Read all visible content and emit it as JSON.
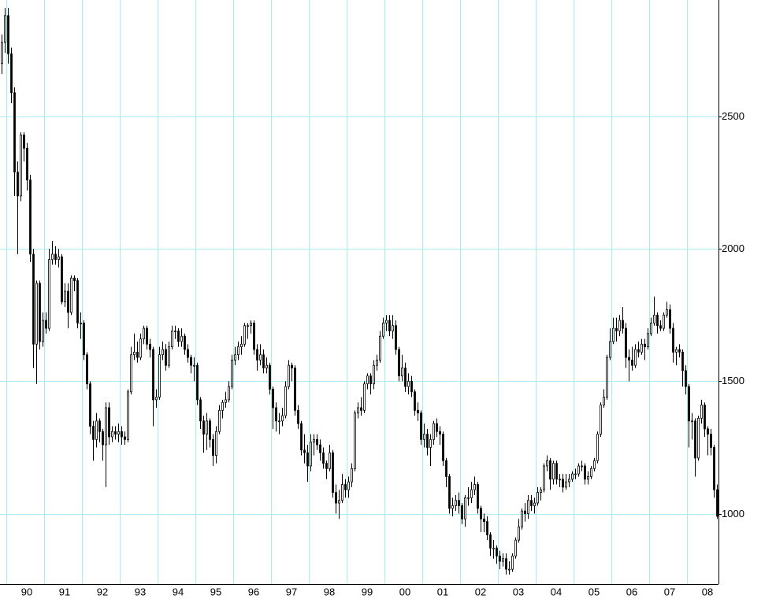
{
  "chart_data": {
    "type": "candlestick",
    "x_labels": [
      "90",
      "91",
      "92",
      "93",
      "94",
      "95",
      "96",
      "97",
      "98",
      "99",
      "00",
      "01",
      "02",
      "03",
      "04",
      "05",
      "06",
      "07",
      "08"
    ],
    "open": [
      2700,
      2780,
      2881,
      2737,
      2590,
      2290,
      2200,
      2430,
      2380,
      2260,
      1980,
      1640,
      1870,
      1650,
      1730,
      1700,
      1960,
      1980,
      1960,
      1970,
      1800,
      1840,
      1760,
      1890,
      1880,
      1720,
      1720,
      1600,
      1490,
      1330,
      1280,
      1350,
      1310,
      1260,
      1400,
      1290,
      1310,
      1300,
      1310,
      1290,
      1280,
      1460,
      1600,
      1610,
      1590,
      1660,
      1700,
      1640,
      1620,
      1430,
      1440,
      1600,
      1620,
      1560,
      1630,
      1690,
      1690,
      1650,
      1670,
      1620,
      1590,
      1560,
      1560,
      1430,
      1350,
      1300,
      1350,
      1280,
      1220,
      1310,
      1390,
      1420,
      1430,
      1480,
      1580,
      1600,
      1630,
      1640,
      1710,
      1710,
      1720,
      1620,
      1580,
      1600,
      1550,
      1560,
      1470,
      1400,
      1350,
      1350,
      1370,
      1480,
      1560,
      1550,
      1390,
      1340,
      1240,
      1230,
      1180,
      1270,
      1280,
      1260,
      1230,
      1190,
      1170,
      1230,
      1080,
      1040,
      1050,
      1110,
      1090,
      1120,
      1170,
      1380,
      1400,
      1390,
      1490,
      1520,
      1490,
      1560,
      1580,
      1670,
      1720,
      1730,
      1690,
      1710,
      1620,
      1520,
      1550,
      1480,
      1500,
      1460,
      1390,
      1380,
      1280,
      1300,
      1250,
      1280,
      1340,
      1310,
      1300,
      1200,
      1140,
      1020,
      1030,
      1050,
      1030,
      980,
      1060,
      1060,
      1090,
      1110,
      1020,
      980,
      970,
      920,
      870,
      870,
      840,
      820,
      830,
      790,
      790,
      840,
      900,
      950,
      1010,
      1000,
      1050,
      1030,
      1040,
      1080,
      1090,
      1180,
      1200,
      1130,
      1190,
      1130,
      1130,
      1100,
      1120,
      1130,
      1150,
      1150,
      1180,
      1180,
      1130,
      1140,
      1170,
      1200,
      1300,
      1410,
      1440,
      1590,
      1650,
      1700,
      1690,
      1730,
      1700,
      1590,
      1580,
      1560,
      1620,
      1610,
      1640,
      1630,
      1680,
      1720,
      1750,
      1710,
      1700,
      1750,
      1770,
      1700,
      1610,
      1620,
      1610,
      1540,
      1480,
      1350,
      1350,
      1210,
      1360,
      1410,
      1320,
      1300,
      1250,
      1090
    ],
    "high": [
      2810,
      2910,
      2910,
      2760,
      2610,
      2330,
      2440,
      2440,
      2400,
      2280,
      2000,
      1880,
      1880,
      1760,
      1760,
      2000,
      2030,
      2010,
      2000,
      1980,
      1870,
      1870,
      1900,
      1900,
      1890,
      1760,
      1730,
      1610,
      1500,
      1350,
      1380,
      1360,
      1320,
      1420,
      1420,
      1330,
      1330,
      1340,
      1330,
      1310,
      1470,
      1630,
      1680,
      1650,
      1680,
      1710,
      1710,
      1660,
      1630,
      1470,
      1630,
      1650,
      1640,
      1650,
      1710,
      1710,
      1700,
      1700,
      1680,
      1640,
      1600,
      1590,
      1570,
      1440,
      1370,
      1380,
      1360,
      1300,
      1330,
      1410,
      1430,
      1460,
      1500,
      1600,
      1630,
      1650,
      1670,
      1720,
      1720,
      1730,
      1730,
      1640,
      1640,
      1620,
      1590,
      1570,
      1480,
      1420,
      1380,
      1400,
      1500,
      1580,
      1570,
      1560,
      1410,
      1350,
      1300,
      1260,
      1300,
      1300,
      1300,
      1280,
      1250,
      1200,
      1260,
      1240,
      1110,
      1090,
      1150,
      1130,
      1140,
      1190,
      1390,
      1420,
      1440,
      1500,
      1530,
      1530,
      1580,
      1600,
      1690,
      1740,
      1750,
      1750,
      1750,
      1730,
      1630,
      1600,
      1570,
      1530,
      1520,
      1470,
      1420,
      1390,
      1340,
      1320,
      1300,
      1350,
      1360,
      1330,
      1310,
      1210,
      1150,
      1060,
      1070,
      1080,
      1040,
      1070,
      1100,
      1120,
      1140,
      1120,
      1030,
      1000,
      990,
      930,
      900,
      880,
      860,
      850,
      850,
      820,
      850,
      910,
      980,
      1020,
      1040,
      1070,
      1070,
      1060,
      1100,
      1100,
      1190,
      1220,
      1210,
      1200,
      1200,
      1150,
      1150,
      1150,
      1150,
      1160,
      1170,
      1190,
      1200,
      1190,
      1160,
      1180,
      1210,
      1310,
      1420,
      1470,
      1600,
      1700,
      1740,
      1740,
      1750,
      1780,
      1720,
      1620,
      1630,
      1640,
      1650,
      1660,
      1660,
      1700,
      1740,
      1820,
      1760,
      1730,
      1760,
      1800,
      1790,
      1720,
      1630,
      1640,
      1620,
      1560,
      1490,
      1380,
      1360,
      1370,
      1430,
      1420,
      1330,
      1320,
      1260,
      1110
    ],
    "low": [
      2660,
      2740,
      2700,
      2550,
      2200,
      1980,
      2180,
      2330,
      2220,
      1950,
      1550,
      1490,
      1620,
      1630,
      1680,
      1690,
      1940,
      1940,
      1930,
      1790,
      1780,
      1700,
      1750,
      1840,
      1700,
      1660,
      1580,
      1470,
      1300,
      1200,
      1250,
      1270,
      1200,
      1100,
      1260,
      1270,
      1280,
      1270,
      1260,
      1260,
      1270,
      1450,
      1580,
      1570,
      1580,
      1640,
      1620,
      1590,
      1330,
      1400,
      1430,
      1580,
      1540,
      1550,
      1620,
      1660,
      1630,
      1630,
      1600,
      1570,
      1530,
      1500,
      1410,
      1320,
      1230,
      1240,
      1250,
      1180,
      1190,
      1300,
      1360,
      1400,
      1420,
      1470,
      1560,
      1580,
      1600,
      1630,
      1660,
      1680,
      1600,
      1540,
      1560,
      1530,
      1530,
      1450,
      1320,
      1310,
      1300,
      1330,
      1360,
      1470,
      1500,
      1370,
      1320,
      1220,
      1190,
      1120,
      1160,
      1220,
      1240,
      1200,
      1170,
      1130,
      1160,
      1060,
      1000,
      980,
      1040,
      1060,
      1060,
      1100,
      1160,
      1360,
      1370,
      1380,
      1470,
      1450,
      1470,
      1540,
      1570,
      1660,
      1690,
      1670,
      1660,
      1600,
      1500,
      1500,
      1460,
      1450,
      1440,
      1370,
      1350,
      1260,
      1250,
      1220,
      1180,
      1260,
      1290,
      1260,
      1180,
      1100,
      1000,
      990,
      1010,
      1000,
      960,
      950,
      1030,
      1040,
      1070,
      1000,
      930,
      930,
      900,
      840,
      830,
      810,
      790,
      800,
      770,
      770,
      780,
      830,
      890,
      940,
      970,
      980,
      1010,
      1000,
      1030,
      1050,
      1080,
      1160,
      1090,
      1110,
      1110,
      1100,
      1080,
      1090,
      1100,
      1120,
      1130,
      1140,
      1160,
      1110,
      1110,
      1130,
      1160,
      1190,
      1290,
      1400,
      1430,
      1580,
      1640,
      1650,
      1670,
      1680,
      1550,
      1500,
      1540,
      1550,
      1590,
      1600,
      1580,
      1620,
      1670,
      1710,
      1680,
      1690,
      1690,
      1740,
      1680,
      1570,
      1560,
      1590,
      1480,
      1450,
      1250,
      1280,
      1140,
      1200,
      1340,
      1290,
      1220,
      1220,
      1060,
      980
    ],
    "close": [
      2780,
      2881,
      2737,
      2590,
      2290,
      2200,
      2430,
      2380,
      2260,
      1980,
      1640,
      1870,
      1650,
      1730,
      1700,
      1960,
      1980,
      1960,
      1970,
      1800,
      1840,
      1760,
      1890,
      1880,
      1720,
      1720,
      1600,
      1490,
      1330,
      1280,
      1350,
      1310,
      1260,
      1400,
      1290,
      1310,
      1300,
      1310,
      1290,
      1280,
      1460,
      1600,
      1610,
      1590,
      1660,
      1700,
      1640,
      1620,
      1430,
      1440,
      1600,
      1620,
      1560,
      1630,
      1690,
      1690,
      1650,
      1670,
      1620,
      1590,
      1560,
      1560,
      1430,
      1350,
      1300,
      1350,
      1280,
      1220,
      1310,
      1390,
      1420,
      1430,
      1480,
      1580,
      1600,
      1630,
      1640,
      1710,
      1710,
      1720,
      1620,
      1580,
      1600,
      1550,
      1560,
      1470,
      1400,
      1350,
      1350,
      1370,
      1480,
      1560,
      1550,
      1390,
      1340,
      1240,
      1230,
      1180,
      1270,
      1280,
      1260,
      1230,
      1190,
      1170,
      1230,
      1080,
      1040,
      1050,
      1110,
      1090,
      1120,
      1170,
      1380,
      1400,
      1390,
      1490,
      1520,
      1490,
      1560,
      1580,
      1670,
      1720,
      1730,
      1690,
      1710,
      1620,
      1520,
      1550,
      1480,
      1500,
      1460,
      1390,
      1380,
      1280,
      1300,
      1250,
      1280,
      1340,
      1310,
      1300,
      1200,
      1140,
      1020,
      1030,
      1050,
      1030,
      980,
      1060,
      1060,
      1090,
      1110,
      1020,
      980,
      970,
      920,
      870,
      870,
      840,
      820,
      830,
      790,
      790,
      840,
      900,
      950,
      1010,
      1000,
      1050,
      1030,
      1040,
      1080,
      1090,
      1180,
      1200,
      1130,
      1190,
      1130,
      1130,
      1100,
      1120,
      1130,
      1150,
      1150,
      1180,
      1180,
      1130,
      1140,
      1170,
      1200,
      1300,
      1410,
      1440,
      1590,
      1650,
      1700,
      1690,
      1730,
      1700,
      1590,
      1580,
      1560,
      1620,
      1610,
      1640,
      1630,
      1680,
      1720,
      1750,
      1710,
      1700,
      1750,
      1770,
      1700,
      1610,
      1620,
      1610,
      1540,
      1480,
      1350,
      1350,
      1210,
      1360,
      1410,
      1320,
      1300,
      1250,
      1090,
      990
    ],
    "ylim": [
      734,
      2940
    ],
    "yticks": [
      1000,
      1500,
      2000,
      2500
    ],
    "grid": true,
    "grid_color": "#a8ecf4",
    "color": "#000000"
  }
}
